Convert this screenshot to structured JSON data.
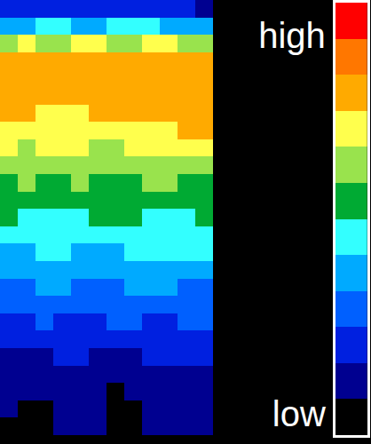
{
  "chart_data": {
    "type": "heatmap",
    "zlim": [
      0,
      11
    ],
    "colors": [
      "#000000",
      "#000090",
      "#0020e0",
      "#0060ff",
      "#00aaff",
      "#33ffff",
      "#00aa33",
      "#99e34d",
      "#ffff4d",
      "#ffaa00",
      "#ff7700",
      "#ff0000"
    ],
    "cells": [
      [
        2,
        2,
        2,
        2,
        2,
        2,
        2,
        2,
        2,
        2,
        2,
        1
      ],
      [
        4,
        4,
        5,
        5,
        4,
        4,
        5,
        5,
        5,
        4,
        4,
        4
      ],
      [
        7,
        8,
        7,
        7,
        8,
        8,
        7,
        7,
        8,
        8,
        7,
        7
      ],
      [
        9,
        9,
        9,
        9,
        9,
        9,
        9,
        9,
        9,
        9,
        9,
        9
      ],
      [
        9,
        9,
        9,
        9,
        9,
        9,
        9,
        9,
        9,
        9,
        9,
        9
      ],
      [
        9,
        9,
        9,
        9,
        9,
        9,
        9,
        9,
        9,
        9,
        9,
        9
      ],
      [
        9,
        9,
        8,
        8,
        8,
        9,
        9,
        9,
        9,
        9,
        9,
        9
      ],
      [
        8,
        8,
        8,
        8,
        8,
        8,
        8,
        8,
        8,
        8,
        9,
        9
      ],
      [
        8,
        7,
        8,
        8,
        8,
        7,
        7,
        8,
        8,
        8,
        8,
        8
      ],
      [
        7,
        7,
        7,
        7,
        7,
        7,
        7,
        7,
        7,
        7,
        7,
        7
      ],
      [
        6,
        7,
        6,
        6,
        7,
        6,
        6,
        6,
        7,
        7,
        6,
        6
      ],
      [
        6,
        6,
        6,
        6,
        6,
        6,
        6,
        6,
        6,
        6,
        6,
        6
      ],
      [
        6,
        5,
        5,
        5,
        5,
        6,
        6,
        6,
        5,
        5,
        5,
        6
      ],
      [
        5,
        5,
        5,
        5,
        5,
        5,
        5,
        5,
        5,
        5,
        5,
        5
      ],
      [
        4,
        4,
        5,
        5,
        4,
        4,
        4,
        5,
        5,
        5,
        5,
        5
      ],
      [
        4,
        4,
        4,
        4,
        4,
        4,
        4,
        4,
        4,
        4,
        4,
        4
      ],
      [
        3,
        3,
        4,
        4,
        3,
        3,
        3,
        4,
        4,
        4,
        3,
        3
      ],
      [
        3,
        3,
        3,
        3,
        3,
        3,
        3,
        3,
        3,
        3,
        3,
        3
      ],
      [
        2,
        2,
        3,
        2,
        2,
        2,
        3,
        3,
        2,
        2,
        3,
        3
      ],
      [
        2,
        2,
        2,
        2,
        2,
        2,
        2,
        2,
        2,
        2,
        2,
        2
      ],
      [
        1,
        1,
        1,
        2,
        2,
        1,
        1,
        1,
        2,
        2,
        2,
        2
      ],
      [
        1,
        1,
        1,
        1,
        1,
        1,
        1,
        1,
        1,
        1,
        1,
        1
      ],
      [
        1,
        1,
        1,
        1,
        1,
        1,
        0,
        1,
        1,
        1,
        1,
        1
      ],
      [
        1,
        0,
        0,
        1,
        1,
        1,
        0,
        0,
        1,
        1,
        1,
        1
      ],
      [
        0,
        0,
        0,
        1,
        1,
        1,
        0,
        0,
        1,
        1,
        1,
        1
      ]
    ],
    "colorbar": {
      "levels": [
        0,
        1,
        2,
        3,
        4,
        5,
        6,
        7,
        8,
        9,
        10,
        11
      ],
      "range": [
        -0.5,
        11.5
      ],
      "ticks": [
        {
          "value": 10.6,
          "label": "high"
        },
        {
          "value": 0.1,
          "label": "low"
        }
      ]
    },
    "tick_labels": false
  }
}
